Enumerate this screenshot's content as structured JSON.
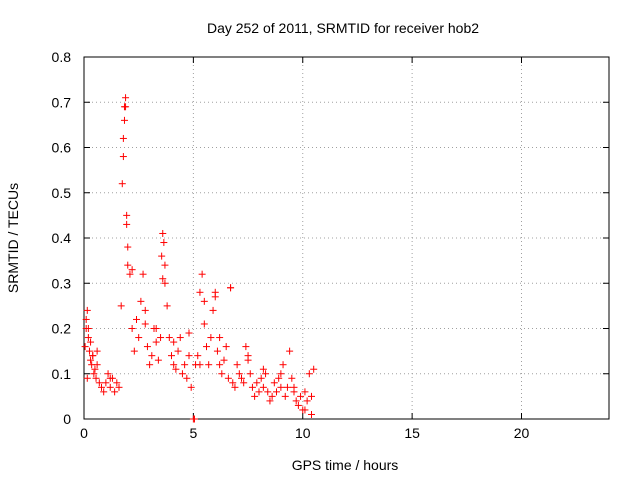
{
  "chart_data": {
    "type": "scatter",
    "title": "Day 252 of 2011, SRMTID for receiver hob2",
    "xlabel": "GPS time / hours",
    "ylabel": "SRMTID / TECUs",
    "xlim": [
      0,
      24
    ],
    "ylim": [
      0,
      0.8
    ],
    "xticks": [
      0,
      5,
      10,
      15,
      20
    ],
    "xtick_labels": [
      "0",
      "5",
      "10",
      "15",
      "20"
    ],
    "yticks": [
      0,
      0.1,
      0.2,
      0.3,
      0.4,
      0.5,
      0.6,
      0.7,
      0.8
    ],
    "ytick_labels": [
      "0",
      "0.1",
      "0.2",
      "0.3",
      "0.4",
      "0.5",
      "0.6",
      "0.7",
      "0.8"
    ],
    "grid": true,
    "legend": "none",
    "marker": "plus",
    "series": [
      {
        "name": "SRMTID",
        "color": "#ff0000",
        "x": [
          0.05,
          0.1,
          0.15,
          0.2,
          0.25,
          0.3,
          0.35,
          0.4,
          0.45,
          0.5,
          0.55,
          0.6,
          0.7,
          0.8,
          0.9,
          1.0,
          1.1,
          1.2,
          1.3,
          1.4,
          1.5,
          1.6,
          1.7,
          1.75,
          1.8,
          1.85,
          1.9,
          1.95,
          2.0,
          2.1,
          2.2,
          2.3,
          2.4,
          2.5,
          2.6,
          2.7,
          2.8,
          2.9,
          3.0,
          3.1,
          3.2,
          3.3,
          3.4,
          3.5,
          3.55,
          3.6,
          3.65,
          3.7,
          3.8,
          3.9,
          4.0,
          4.1,
          4.2,
          4.3,
          4.4,
          4.5,
          4.6,
          4.7,
          4.8,
          4.9,
          5.0,
          5.05,
          5.1,
          5.2,
          5.3,
          5.4,
          5.5,
          5.6,
          5.7,
          5.8,
          5.9,
          6.0,
          6.1,
          6.2,
          6.3,
          6.4,
          6.5,
          6.6,
          6.7,
          6.8,
          6.9,
          7.0,
          7.1,
          7.2,
          7.3,
          7.4,
          7.5,
          7.6,
          7.7,
          7.8,
          7.9,
          8.0,
          8.1,
          8.2,
          8.3,
          8.4,
          8.5,
          8.6,
          8.7,
          8.8,
          8.9,
          9.0,
          9.1,
          9.2,
          9.3,
          9.4,
          9.5,
          9.6,
          9.7,
          9.8,
          9.9,
          10.0,
          10.1,
          10.2,
          10.3,
          10.4,
          10.5,
          1.8,
          1.85,
          1.9,
          1.95,
          2.0,
          0.1,
          0.2,
          0.3,
          0.4,
          3.6,
          3.7,
          5.5,
          6.0,
          6.7,
          0.15,
          0.6,
          1.2,
          2.2,
          2.8,
          3.3,
          4.1,
          4.8,
          5.3,
          6.2,
          7.5,
          8.2,
          9.0,
          9.6,
          10.1,
          10.4
        ],
        "y": [
          0.16,
          0.22,
          0.24,
          0.2,
          0.15,
          0.13,
          0.12,
          0.14,
          0.1,
          0.11,
          0.09,
          0.12,
          0.08,
          0.07,
          0.06,
          0.08,
          0.1,
          0.07,
          0.09,
          0.06,
          0.08,
          0.07,
          0.25,
          0.52,
          0.62,
          0.69,
          0.71,
          0.45,
          0.38,
          0.32,
          0.2,
          0.15,
          0.22,
          0.18,
          0.26,
          0.32,
          0.21,
          0.16,
          0.12,
          0.14,
          0.2,
          0.17,
          0.13,
          0.18,
          0.36,
          0.41,
          0.39,
          0.3,
          0.25,
          0.18,
          0.14,
          0.12,
          0.11,
          0.15,
          0.18,
          0.1,
          0.12,
          0.09,
          0.14,
          0.07,
          0.0,
          0.0,
          0.12,
          0.14,
          0.28,
          0.32,
          0.21,
          0.16,
          0.12,
          0.18,
          0.24,
          0.28,
          0.15,
          0.12,
          0.1,
          0.13,
          0.16,
          0.09,
          0.29,
          0.08,
          0.07,
          0.12,
          0.1,
          0.09,
          0.08,
          0.16,
          0.14,
          0.1,
          0.07,
          0.05,
          0.08,
          0.06,
          0.09,
          0.07,
          0.1,
          0.06,
          0.04,
          0.05,
          0.08,
          0.06,
          0.09,
          0.07,
          0.12,
          0.05,
          0.07,
          0.15,
          0.09,
          0.06,
          0.04,
          0.03,
          0.05,
          0.02,
          0.06,
          0.04,
          0.1,
          0.05,
          0.11,
          0.58,
          0.66,
          0.69,
          0.43,
          0.34,
          0.2,
          0.18,
          0.17,
          0.14,
          0.31,
          0.34,
          0.26,
          0.27,
          0.29,
          0.09,
          0.15,
          0.09,
          0.33,
          0.24,
          0.2,
          0.17,
          0.19,
          0.12,
          0.18,
          0.13,
          0.11,
          0.1,
          0.07,
          0.02,
          0.01
        ]
      }
    ]
  }
}
